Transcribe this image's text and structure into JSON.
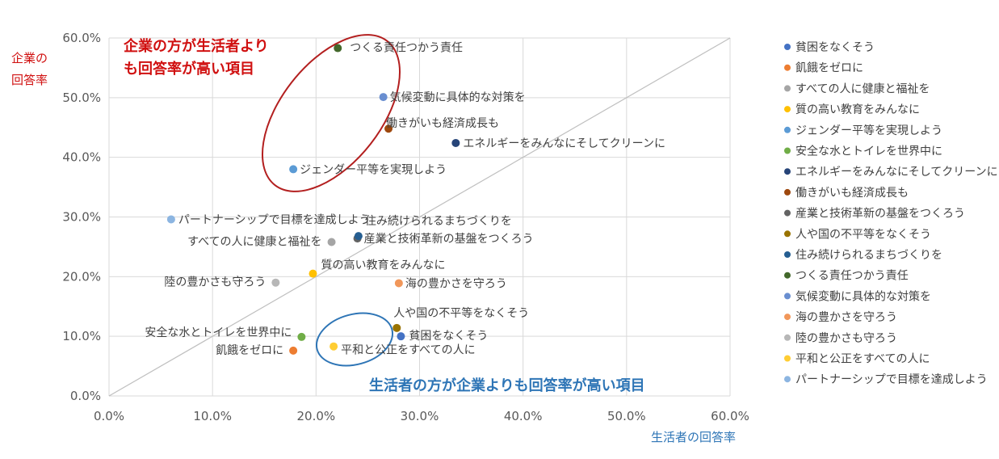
{
  "chart_data": {
    "type": "scatter",
    "xlabel": "生活者の回答率",
    "ylabel_lines": [
      "企業の",
      "回答率"
    ],
    "xlim": [
      0,
      60
    ],
    "ylim": [
      0,
      60
    ],
    "x_ticks": [
      "0.0%",
      "10.0%",
      "20.0%",
      "30.0%",
      "40.0%",
      "50.0%",
      "60.0%"
    ],
    "y_ticks": [
      "0.0%",
      "10.0%",
      "20.0%",
      "30.0%",
      "40.0%",
      "50.0%",
      "60.0%"
    ],
    "grid": true,
    "diagonal_reference_line": true,
    "legend_position": "right",
    "series": [
      {
        "name": "貧困をなくそう",
        "color": "#4472c4",
        "x": 28.2,
        "y": 10.0,
        "label": "貧困をなくそう"
      },
      {
        "name": "飢餓をゼロに",
        "color": "#ed7d31",
        "x": 17.8,
        "y": 7.6,
        "label": "飢餓をゼロに"
      },
      {
        "name": "すべての人に健康と福祉を",
        "color": "#a5a5a5",
        "x": 21.5,
        "y": 25.8,
        "label": "すべての人に健康と福祉を"
      },
      {
        "name": "質の高い教育をみんなに",
        "color": "#ffc000",
        "x": 19.7,
        "y": 20.5,
        "label": "質の高い教育をみんなに"
      },
      {
        "name": "ジェンダー平等を実現しよう",
        "color": "#5b9bd5",
        "x": 17.8,
        "y": 38.0,
        "label": "ジェンダー平等を実現しよう"
      },
      {
        "name": "安全な水とトイレを世界中に",
        "color": "#70ad47",
        "x": 18.6,
        "y": 9.9,
        "label": "安全な水とトイレを世界中に"
      },
      {
        "name": "エネルギーをみんなにそしてクリーンに",
        "color": "#264478",
        "x": 33.5,
        "y": 42.4,
        "label": "エネルギーをみんなにそしてクリーンに"
      },
      {
        "name": "働きがいも経済成長も",
        "color": "#9e480e",
        "x": 27.0,
        "y": 44.8,
        "label": "働きがいも経済成長も"
      },
      {
        "name": "産業と技術革新の基盤をつくろう",
        "color": "#636363",
        "x": 24.0,
        "y": 26.4,
        "label": "産業と技術革新の基盤をつくろう"
      },
      {
        "name": "人や国の不平等をなくそう",
        "color": "#997300",
        "x": 27.8,
        "y": 11.4,
        "label": "人や国の不平等をなくそう"
      },
      {
        "name": "住み続けられるまちづくりを",
        "color": "#255e91",
        "x": 24.1,
        "y": 26.8,
        "label": "住み続けられるまちづくりを"
      },
      {
        "name": "つくる責任つかう責任",
        "color": "#43682b",
        "x": 22.1,
        "y": 58.3,
        "label": "つくる責任つかう責任"
      },
      {
        "name": "気候変動に具体的な対策を",
        "color": "#698ed0",
        "x": 26.5,
        "y": 50.1,
        "label": "気候変動に具体的な対策を"
      },
      {
        "name": "海の豊かさを守ろう",
        "color": "#f1975a",
        "x": 28.0,
        "y": 18.9,
        "label": "海の豊かさを守ろう"
      },
      {
        "name": "陸の豊かさも守ろう",
        "color": "#b7b7b7",
        "x": 16.1,
        "y": 19.0,
        "label": "陸の豊かさも守ろう"
      },
      {
        "name": "平和と公正をすべての人に",
        "color": "#ffcd33",
        "x": 21.7,
        "y": 8.3,
        "label": "平和と公正をすべての人に"
      },
      {
        "name": "パートナーシップで目標を達成しよう",
        "color": "#8cb5e1",
        "x": 6.0,
        "y": 29.6,
        "label": "パートナーシップで目標を達成しよう"
      }
    ],
    "annotations": [
      {
        "text_lines": [
          "企業の方が生活者より",
          "も回答率が高い項目"
        ],
        "color": "#d01010"
      },
      {
        "text_lines": [
          "生活者の方が企業よりも回答率が高い項目"
        ],
        "color": "#2e75b6"
      }
    ]
  }
}
